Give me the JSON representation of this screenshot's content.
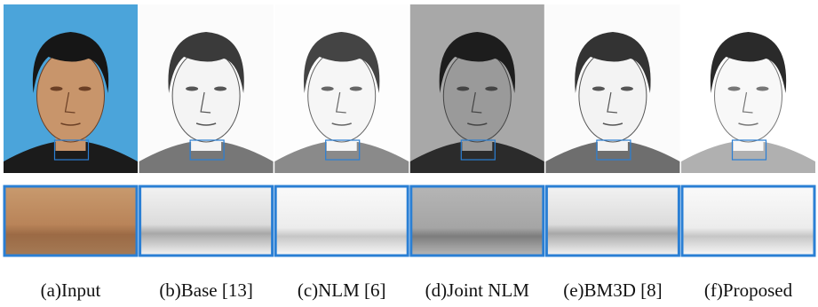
{
  "figure": {
    "captions": [
      "(a)Input",
      "(b)Base [13]",
      "(c)NLM [6]",
      "(d)Joint NLM",
      "(e)BM3D [8]",
      "(f)Proposed"
    ]
  }
}
